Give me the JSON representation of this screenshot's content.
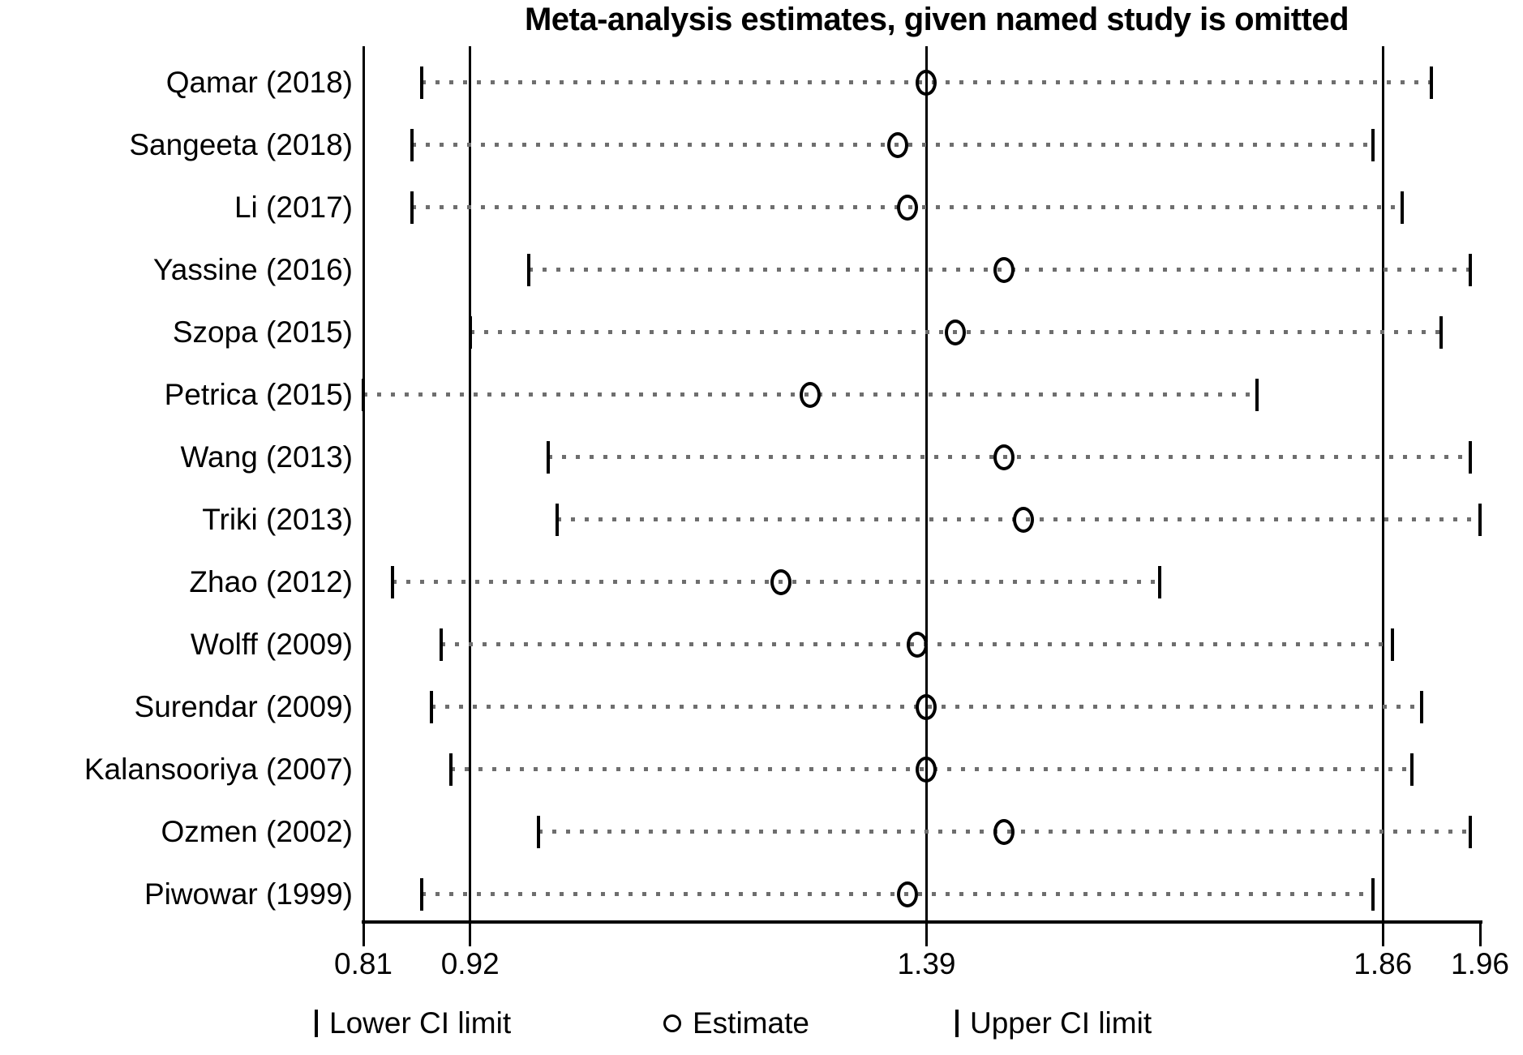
{
  "title": "Meta-analysis estimates, given named study is omitted",
  "colors": {
    "line": "#000000",
    "dotted_line": "#6e6e6e",
    "background": "#ffffff"
  },
  "chart_data": {
    "type": "scatter",
    "subtype": "leave-one-out-forest-plot",
    "title": "Meta-analysis estimates, given named study is omitted",
    "xlabel": "",
    "ylabel": "",
    "x_axis": {
      "range": [
        0.81,
        1.96
      ],
      "ticks": [
        0.81,
        0.92,
        1.39,
        1.86,
        1.96
      ],
      "tick_labels": [
        "0.81",
        "0.92",
        "1.39",
        "1.86",
        "1.96"
      ],
      "guide_lines": [
        0.92,
        1.39,
        1.86
      ],
      "grid": false
    },
    "studies": [
      {
        "label": "Qamar (2018)",
        "lower": 0.87,
        "estimate": 1.39,
        "upper": 1.91
      },
      {
        "label": "Sangeeta (2018)",
        "lower": 0.86,
        "estimate": 1.36,
        "upper": 1.85
      },
      {
        "label": "Li (2017)",
        "lower": 0.86,
        "estimate": 1.37,
        "upper": 1.88
      },
      {
        "label": "Yassine (2016)",
        "lower": 0.98,
        "estimate": 1.47,
        "upper": 1.95
      },
      {
        "label": "Szopa (2015)",
        "lower": 0.92,
        "estimate": 1.42,
        "upper": 1.92
      },
      {
        "label": "Petrica (2015)",
        "lower": 0.81,
        "estimate": 1.27,
        "upper": 1.73
      },
      {
        "label": "Wang (2013)",
        "lower": 1.0,
        "estimate": 1.47,
        "upper": 1.95
      },
      {
        "label": "Triki (2013)",
        "lower": 1.01,
        "estimate": 1.49,
        "upper": 1.96
      },
      {
        "label": "Zhao (2012)",
        "lower": 0.84,
        "estimate": 1.24,
        "upper": 1.63
      },
      {
        "label": "Wolff (2009)",
        "lower": 0.89,
        "estimate": 1.38,
        "upper": 1.87
      },
      {
        "label": "Surendar (2009)",
        "lower": 0.88,
        "estimate": 1.39,
        "upper": 1.9
      },
      {
        "label": "Kalansooriya (2007)",
        "lower": 0.9,
        "estimate": 1.39,
        "upper": 1.89
      },
      {
        "label": "Ozmen (2002)",
        "lower": 0.99,
        "estimate": 1.47,
        "upper": 1.95
      },
      {
        "label": "Piwowar (1999)",
        "lower": 0.87,
        "estimate": 1.37,
        "upper": 1.85
      }
    ],
    "legend": [
      {
        "marker": "bar",
        "label": "Lower CI limit"
      },
      {
        "marker": "circle",
        "label": "Estimate"
      },
      {
        "marker": "bar",
        "label": "Upper CI limit"
      }
    ],
    "legend_position": "bottom"
  }
}
